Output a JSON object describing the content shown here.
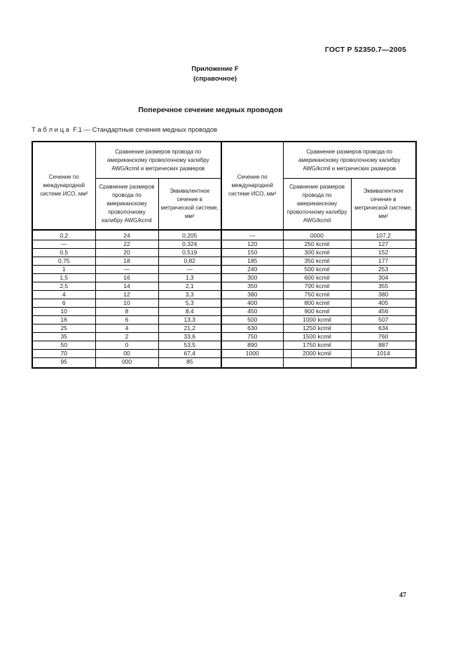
{
  "page": {
    "doc_ref": "ГОСТ Р 52350.7—2005",
    "appendix_line1": "Приложение F",
    "appendix_line2": "(справочное)",
    "title": "Поперечное сечение медных проводов",
    "table_caption": "Т а б л и ц а  F.1 — Стандартные сечения медных проводов",
    "page_number": "47"
  },
  "table": {
    "header": {
      "iso_col": "Сечение по международной системе ИСО, мм²",
      "awg_group": "Сравнение размеров провода по американскому проволочному калибру AWG/kcmil и метрических размеров",
      "awg_sub": "Сравнение размеров провода по американскому проволочному калибру AWG/kcmil",
      "metric_sub": "Эквивалентное сечение в метрической системе, мм²"
    },
    "rows": [
      [
        "0,2",
        "24",
        "0,205",
        "—",
        "0000",
        "107,2"
      ],
      [
        "—",
        "22",
        "0,324",
        "120",
        "250 kcmil",
        "127"
      ],
      [
        "0,5",
        "20",
        "0,519",
        "150",
        "300 kcmil",
        "152"
      ],
      [
        "0,75",
        "18",
        "0,82",
        "185",
        "350 kcmil",
        "177"
      ],
      [
        "1",
        "—",
        "—",
        "240",
        "500 kcmil",
        "253"
      ],
      [
        "1,5",
        "16",
        "1,3",
        "300",
        "600 kcmil",
        "304"
      ],
      [
        "2,5",
        "14",
        "2,1",
        "350",
        "700 kcmil",
        "355"
      ],
      [
        "4",
        "12",
        "3,3",
        "380",
        "750 kcmil",
        "380"
      ],
      [
        "6",
        "10",
        "5,3",
        "400",
        "800 kcmil",
        "405"
      ],
      [
        "10",
        "8",
        "8,4",
        "450",
        "900 kcmil",
        "456"
      ],
      [
        "16",
        "6",
        "13,3",
        "500",
        "1000 kcmil",
        "507"
      ],
      [
        "25",
        "4",
        "21,2",
        "630",
        "1250 kcmil",
        "634"
      ],
      [
        "35",
        "2",
        "33,6",
        "750",
        "1500 kcmil",
        "760"
      ],
      [
        "50",
        "0",
        "53,5",
        "890",
        "1750 kcmil",
        "887"
      ],
      [
        "70",
        "00",
        "67,4",
        "1000",
        "2000 kcmil",
        "1014"
      ],
      [
        "95",
        "000",
        "85",
        "",
        "",
        ""
      ]
    ]
  }
}
